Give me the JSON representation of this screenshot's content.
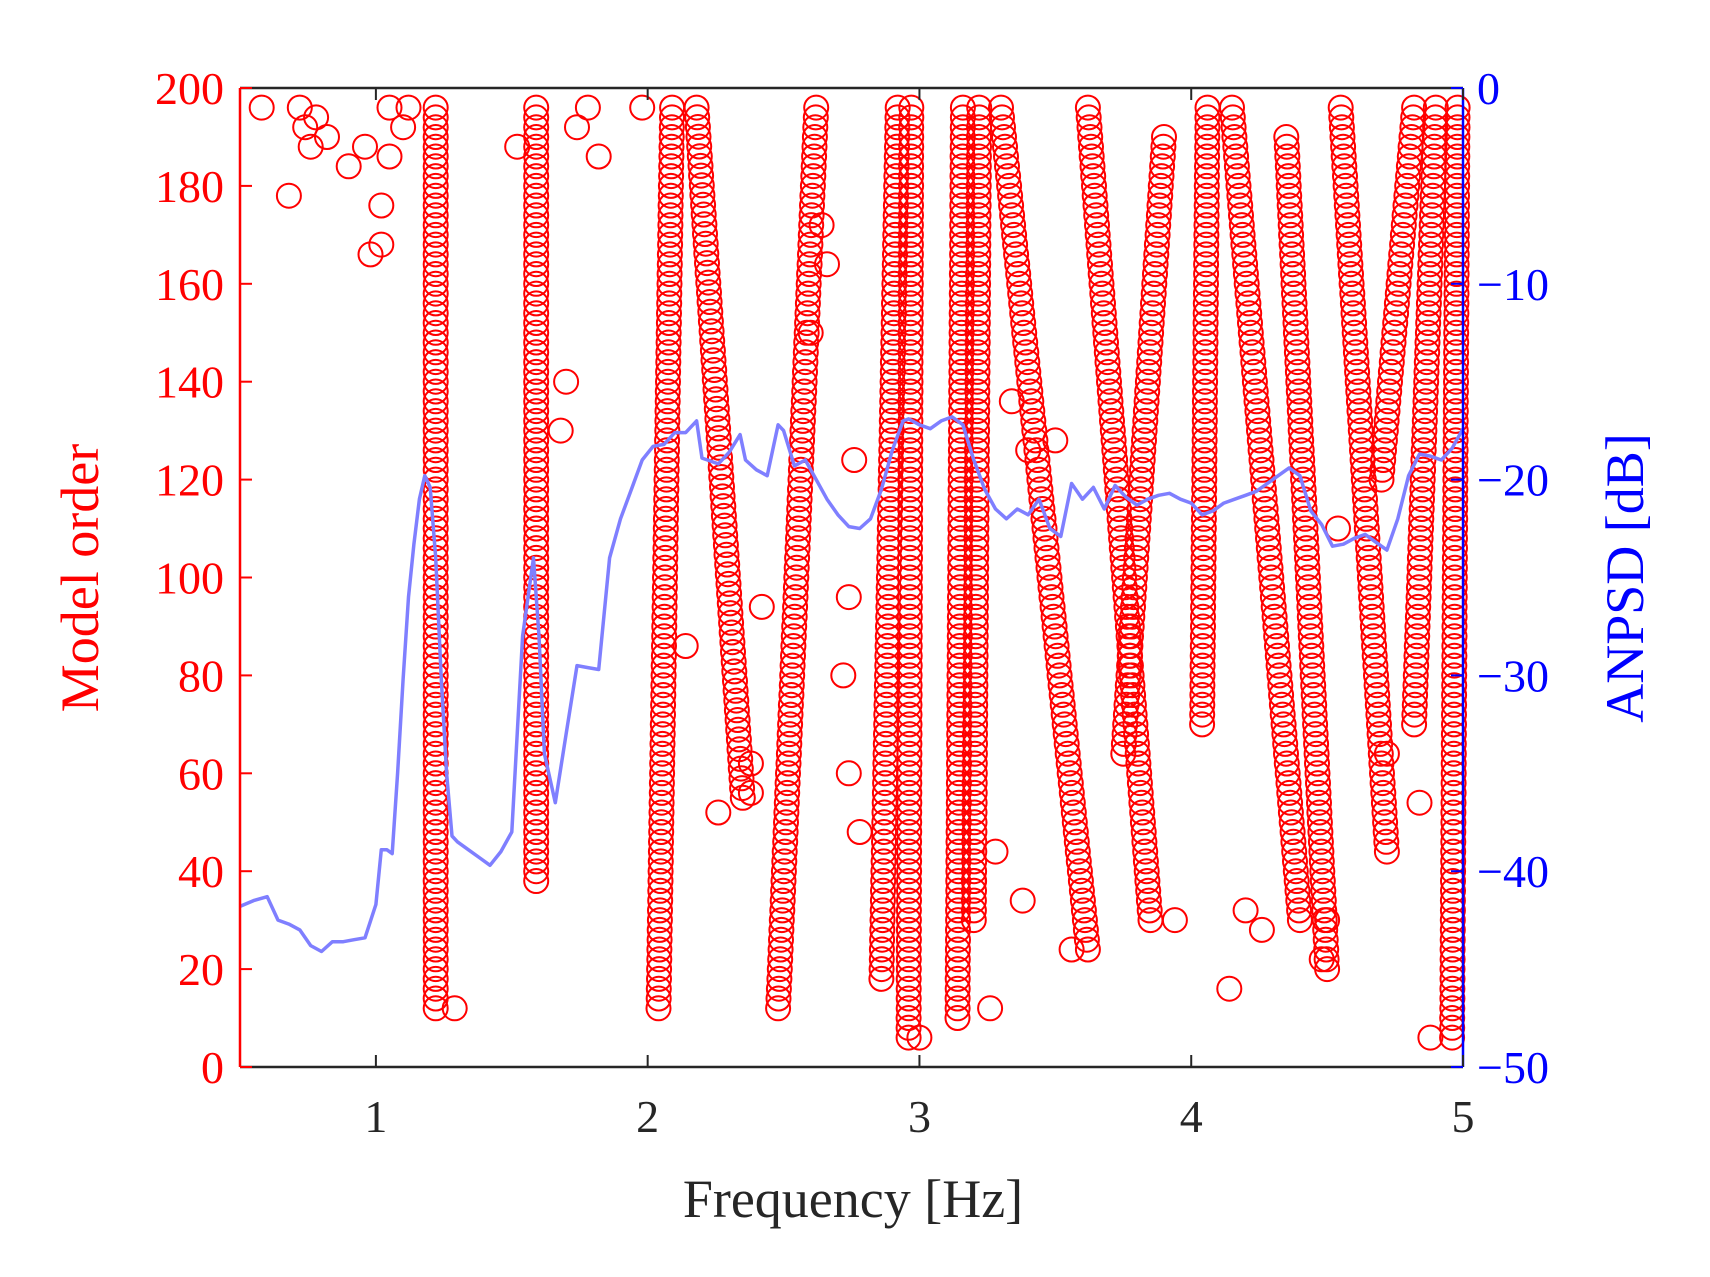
{
  "chart_data": {
    "type": "scatter",
    "xlabel": "Frequency [Hz]",
    "ylabel": "Model order",
    "y2label": "ANPSD [dB]",
    "xlim": [
      0.5,
      5
    ],
    "ylim": [
      0,
      200
    ],
    "y2lim": [
      -50,
      0
    ],
    "xticks": [
      1,
      2,
      3,
      4,
      5
    ],
    "yticks": [
      0,
      20,
      40,
      60,
      80,
      100,
      120,
      140,
      160,
      180,
      200
    ],
    "y2ticks": [
      -50,
      -40,
      -30,
      -20,
      -10,
      0
    ],
    "grid": false,
    "legend": "none",
    "colors": {
      "poles": "#ff0000",
      "psd": "#7f7fff",
      "left_axis": "#ff0000",
      "right_axis": "#0000ff",
      "box": "#262626"
    },
    "series": [
      {
        "kind": "scatter",
        "axis": "left",
        "marker": "open-circle",
        "vertical_columns": [
          {
            "x": 1.22,
            "x_end": 1.22,
            "ymin": 12,
            "ymax": 196
          },
          {
            "x": 1.59,
            "x_end": 1.59,
            "ymin": 38,
            "ymax": 196
          },
          {
            "x": 2.04,
            "x_end": 2.09,
            "ymin": 12,
            "ymax": 196
          },
          {
            "x": 2.48,
            "x_end": 2.62,
            "ymin": 12,
            "ymax": 196
          },
          {
            "x": 2.86,
            "x_end": 2.92,
            "ymin": 18,
            "ymax": 196
          },
          {
            "x": 2.96,
            "x_end": 2.97,
            "ymin": 6,
            "ymax": 196
          },
          {
            "x": 3.14,
            "x_end": 3.16,
            "ymin": 10,
            "ymax": 196
          },
          {
            "x": 3.2,
            "x_end": 3.22,
            "ymin": 30,
            "ymax": 196
          },
          {
            "x": 4.04,
            "x_end": 4.06,
            "ymin": 70,
            "ymax": 196
          },
          {
            "x": 4.96,
            "x_end": 4.98,
            "ymin": 6,
            "ymax": 196
          }
        ],
        "diagonal_tracks": [
          {
            "x_start": 2.18,
            "y_start": 196,
            "x_end": 2.35,
            "y_end": 55
          },
          {
            "x_start": 3.3,
            "y_start": 196,
            "x_end": 3.62,
            "y_end": 24
          },
          {
            "x_start": 3.62,
            "y_start": 196,
            "x_end": 3.85,
            "y_end": 30
          },
          {
            "x_start": 3.9,
            "y_start": 190,
            "x_end": 3.75,
            "y_end": 64
          },
          {
            "x_start": 4.15,
            "y_start": 196,
            "x_end": 4.4,
            "y_end": 30
          },
          {
            "x_start": 4.35,
            "y_start": 190,
            "x_end": 4.5,
            "y_end": 20
          },
          {
            "x_start": 4.55,
            "y_start": 196,
            "x_end": 4.72,
            "y_end": 44
          },
          {
            "x_start": 4.82,
            "y_start": 196,
            "x_end": 4.7,
            "y_end": 120
          },
          {
            "x_start": 4.9,
            "y_start": 196,
            "x_end": 4.82,
            "y_end": 70
          }
        ],
        "isolated_points": [
          [
            0.58,
            196
          ],
          [
            0.68,
            178
          ],
          [
            0.72,
            196
          ],
          [
            0.74,
            192
          ],
          [
            0.76,
            188
          ],
          [
            0.78,
            194
          ],
          [
            0.82,
            190
          ],
          [
            0.9,
            184
          ],
          [
            0.96,
            188
          ],
          [
            0.98,
            166
          ],
          [
            1.02,
            168
          ],
          [
            1.02,
            176
          ],
          [
            1.05,
            186
          ],
          [
            1.05,
            196
          ],
          [
            1.1,
            192
          ],
          [
            1.12,
            196
          ],
          [
            1.29,
            12
          ],
          [
            1.52,
            188
          ],
          [
            1.68,
            130
          ],
          [
            1.7,
            140
          ],
          [
            1.74,
            192
          ],
          [
            1.78,
            196
          ],
          [
            1.82,
            186
          ],
          [
            1.98,
            196
          ],
          [
            2.14,
            86
          ],
          [
            2.26,
            52
          ],
          [
            2.38,
            62
          ],
          [
            2.38,
            56
          ],
          [
            2.42,
            94
          ],
          [
            2.6,
            150
          ],
          [
            2.64,
            172
          ],
          [
            2.66,
            164
          ],
          [
            2.72,
            80
          ],
          [
            2.74,
            96
          ],
          [
            2.74,
            60
          ],
          [
            2.76,
            124
          ],
          [
            2.78,
            48
          ],
          [
            3.0,
            6
          ],
          [
            3.2,
            38
          ],
          [
            3.26,
            12
          ],
          [
            3.28,
            44
          ],
          [
            3.34,
            136
          ],
          [
            3.38,
            34
          ],
          [
            3.4,
            126
          ],
          [
            3.5,
            128
          ],
          [
            3.56,
            24
          ],
          [
            3.94,
            30
          ],
          [
            4.14,
            16
          ],
          [
            4.2,
            32
          ],
          [
            4.26,
            28
          ],
          [
            4.48,
            22
          ],
          [
            4.5,
            30
          ],
          [
            4.54,
            110
          ],
          [
            4.72,
            64
          ],
          [
            4.84,
            54
          ],
          [
            4.88,
            6
          ]
        ]
      },
      {
        "kind": "line",
        "axis": "right",
        "name": "",
        "x": [
          0.5,
          0.55,
          0.6,
          0.64,
          0.68,
          0.72,
          0.76,
          0.8,
          0.84,
          0.88,
          0.92,
          0.96,
          1.0,
          1.02,
          1.04,
          1.06,
          1.08,
          1.1,
          1.12,
          1.14,
          1.16,
          1.18,
          1.2,
          1.22,
          1.24,
          1.26,
          1.28,
          1.3,
          1.34,
          1.38,
          1.42,
          1.46,
          1.5,
          1.54,
          1.58,
          1.6,
          1.62,
          1.66,
          1.7,
          1.74,
          1.78,
          1.82,
          1.86,
          1.9,
          1.94,
          1.98,
          2.02,
          2.06,
          2.1,
          2.14,
          2.18,
          2.2,
          2.22,
          2.26,
          2.3,
          2.34,
          2.36,
          2.4,
          2.44,
          2.48,
          2.5,
          2.54,
          2.58,
          2.62,
          2.66,
          2.7,
          2.74,
          2.78,
          2.82,
          2.86,
          2.9,
          2.94,
          2.96,
          3.0,
          3.04,
          3.08,
          3.12,
          3.16,
          3.2,
          3.24,
          3.28,
          3.32,
          3.36,
          3.4,
          3.44,
          3.48,
          3.52,
          3.56,
          3.6,
          3.64,
          3.68,
          3.72,
          3.76,
          3.8,
          3.84,
          3.88,
          3.92,
          3.96,
          4.0,
          4.04,
          4.08,
          4.12,
          4.16,
          4.2,
          4.24,
          4.28,
          4.32,
          4.36,
          4.4,
          4.44,
          4.48,
          4.52,
          4.56,
          4.6,
          4.64,
          4.68,
          4.72,
          4.76,
          4.8,
          4.84,
          4.88,
          4.92,
          4.96,
          5.0
        ],
        "y": [
          -41.8,
          -41.5,
          -41.3,
          -42.5,
          -42.7,
          -43.0,
          -43.8,
          -44.1,
          -43.6,
          -43.6,
          -43.5,
          -43.4,
          -41.7,
          -38.9,
          -38.9,
          -39.1,
          -35.0,
          -30.2,
          -26.0,
          -23.3,
          -21.0,
          -19.8,
          -20.4,
          -24.0,
          -30.0,
          -35.0,
          -38.2,
          -38.5,
          -38.9,
          -39.3,
          -39.7,
          -39.0,
          -38.0,
          -28.0,
          -24.0,
          -28.0,
          -34.0,
          -36.5,
          -33.0,
          -29.5,
          -29.6,
          -29.7,
          -24.0,
          -22.0,
          -20.5,
          -19.0,
          -18.3,
          -18.2,
          -17.6,
          -17.6,
          -17.0,
          -18.9,
          -19.0,
          -19.2,
          -18.6,
          -17.7,
          -19.0,
          -19.5,
          -19.8,
          -17.2,
          -17.5,
          -19.3,
          -19.0,
          -20.0,
          -21.0,
          -21.8,
          -22.4,
          -22.5,
          -22.0,
          -20.5,
          -18.5,
          -17.0,
          -16.9,
          -17.2,
          -17.4,
          -17.0,
          -16.8,
          -17.2,
          -19.0,
          -20.5,
          -21.5,
          -22.0,
          -21.5,
          -21.8,
          -21.0,
          -22.5,
          -22.9,
          -20.2,
          -21.0,
          -20.4,
          -21.5,
          -20.3,
          -20.9,
          -21.3,
          -21.0,
          -20.8,
          -20.7,
          -21.0,
          -21.2,
          -21.8,
          -21.6,
          -21.2,
          -21.0,
          -20.8,
          -20.6,
          -20.2,
          -19.8,
          -19.4,
          -19.8,
          -21.6,
          -22.3,
          -23.4,
          -23.3,
          -23.0,
          -22.8,
          -23.2,
          -23.6,
          -22.0,
          -19.8,
          -18.7,
          -18.8,
          -19.0,
          -18.4,
          -17.4
        ]
      }
    ]
  }
}
